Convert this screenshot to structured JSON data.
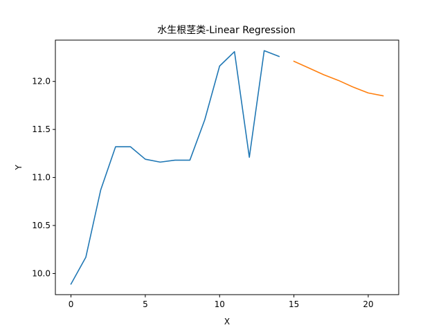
{
  "chart_data": {
    "type": "line",
    "title": "水生根茎类-Linear Regression",
    "xlabel": "X",
    "ylabel": "Y",
    "xlim": [
      -1.05,
      22.05
    ],
    "ylim": [
      9.78,
      12.43
    ],
    "xticks": [
      0,
      5,
      10,
      15,
      20
    ],
    "yticks": [
      10.0,
      10.5,
      11.0,
      11.5,
      12.0
    ],
    "ytick_labels": [
      "10.0",
      "10.5",
      "11.0",
      "11.5",
      "12.0"
    ],
    "grid": false,
    "series": [
      {
        "color": "#1f77b4",
        "x": [
          0,
          1,
          2,
          3,
          4,
          5,
          6,
          7,
          8,
          9,
          10,
          11,
          12,
          13,
          14
        ],
        "y": [
          9.89,
          10.17,
          10.87,
          11.32,
          11.32,
          11.19,
          11.16,
          11.18,
          11.18,
          11.6,
          12.16,
          12.31,
          11.21,
          12.32,
          12.26
        ]
      },
      {
        "color": "#ff7f0e",
        "x": [
          15,
          16,
          17,
          18,
          19,
          20,
          21
        ],
        "y": [
          12.21,
          12.14,
          12.07,
          12.01,
          11.94,
          11.88,
          11.85
        ]
      }
    ]
  }
}
